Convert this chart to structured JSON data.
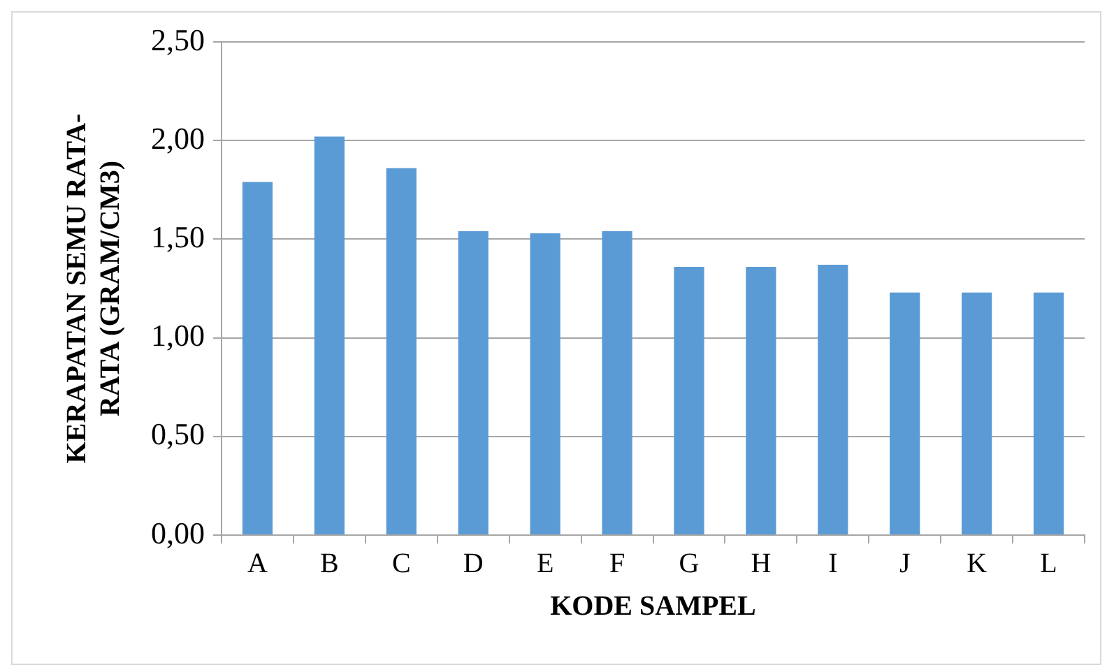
{
  "chart_data": {
    "type": "bar",
    "xlabel": "KODE SAMPEL",
    "ylabel": "KERAPATAN SEMU RATA-RATA (GRAM/CM3)",
    "categories": [
      "A",
      "B",
      "C",
      "D",
      "E",
      "F",
      "G",
      "H",
      "I",
      "J",
      "K",
      "L"
    ],
    "values": [
      1.79,
      2.02,
      1.86,
      1.54,
      1.53,
      1.54,
      1.36,
      1.36,
      1.37,
      1.23,
      1.23,
      1.23
    ],
    "color": "#5b9bd5",
    "ylim": [
      0,
      2.5
    ],
    "yticks": [
      {
        "value": 0,
        "label": "0,00"
      },
      {
        "value": 0.5,
        "label": "0,50"
      },
      {
        "value": 1,
        "label": "1,00"
      },
      {
        "value": 1.5,
        "label": "1,50"
      },
      {
        "value": 2,
        "label": "2,00"
      },
      {
        "value": 2.5,
        "label": "2,50"
      }
    ],
    "grid": "y",
    "legend": false
  }
}
